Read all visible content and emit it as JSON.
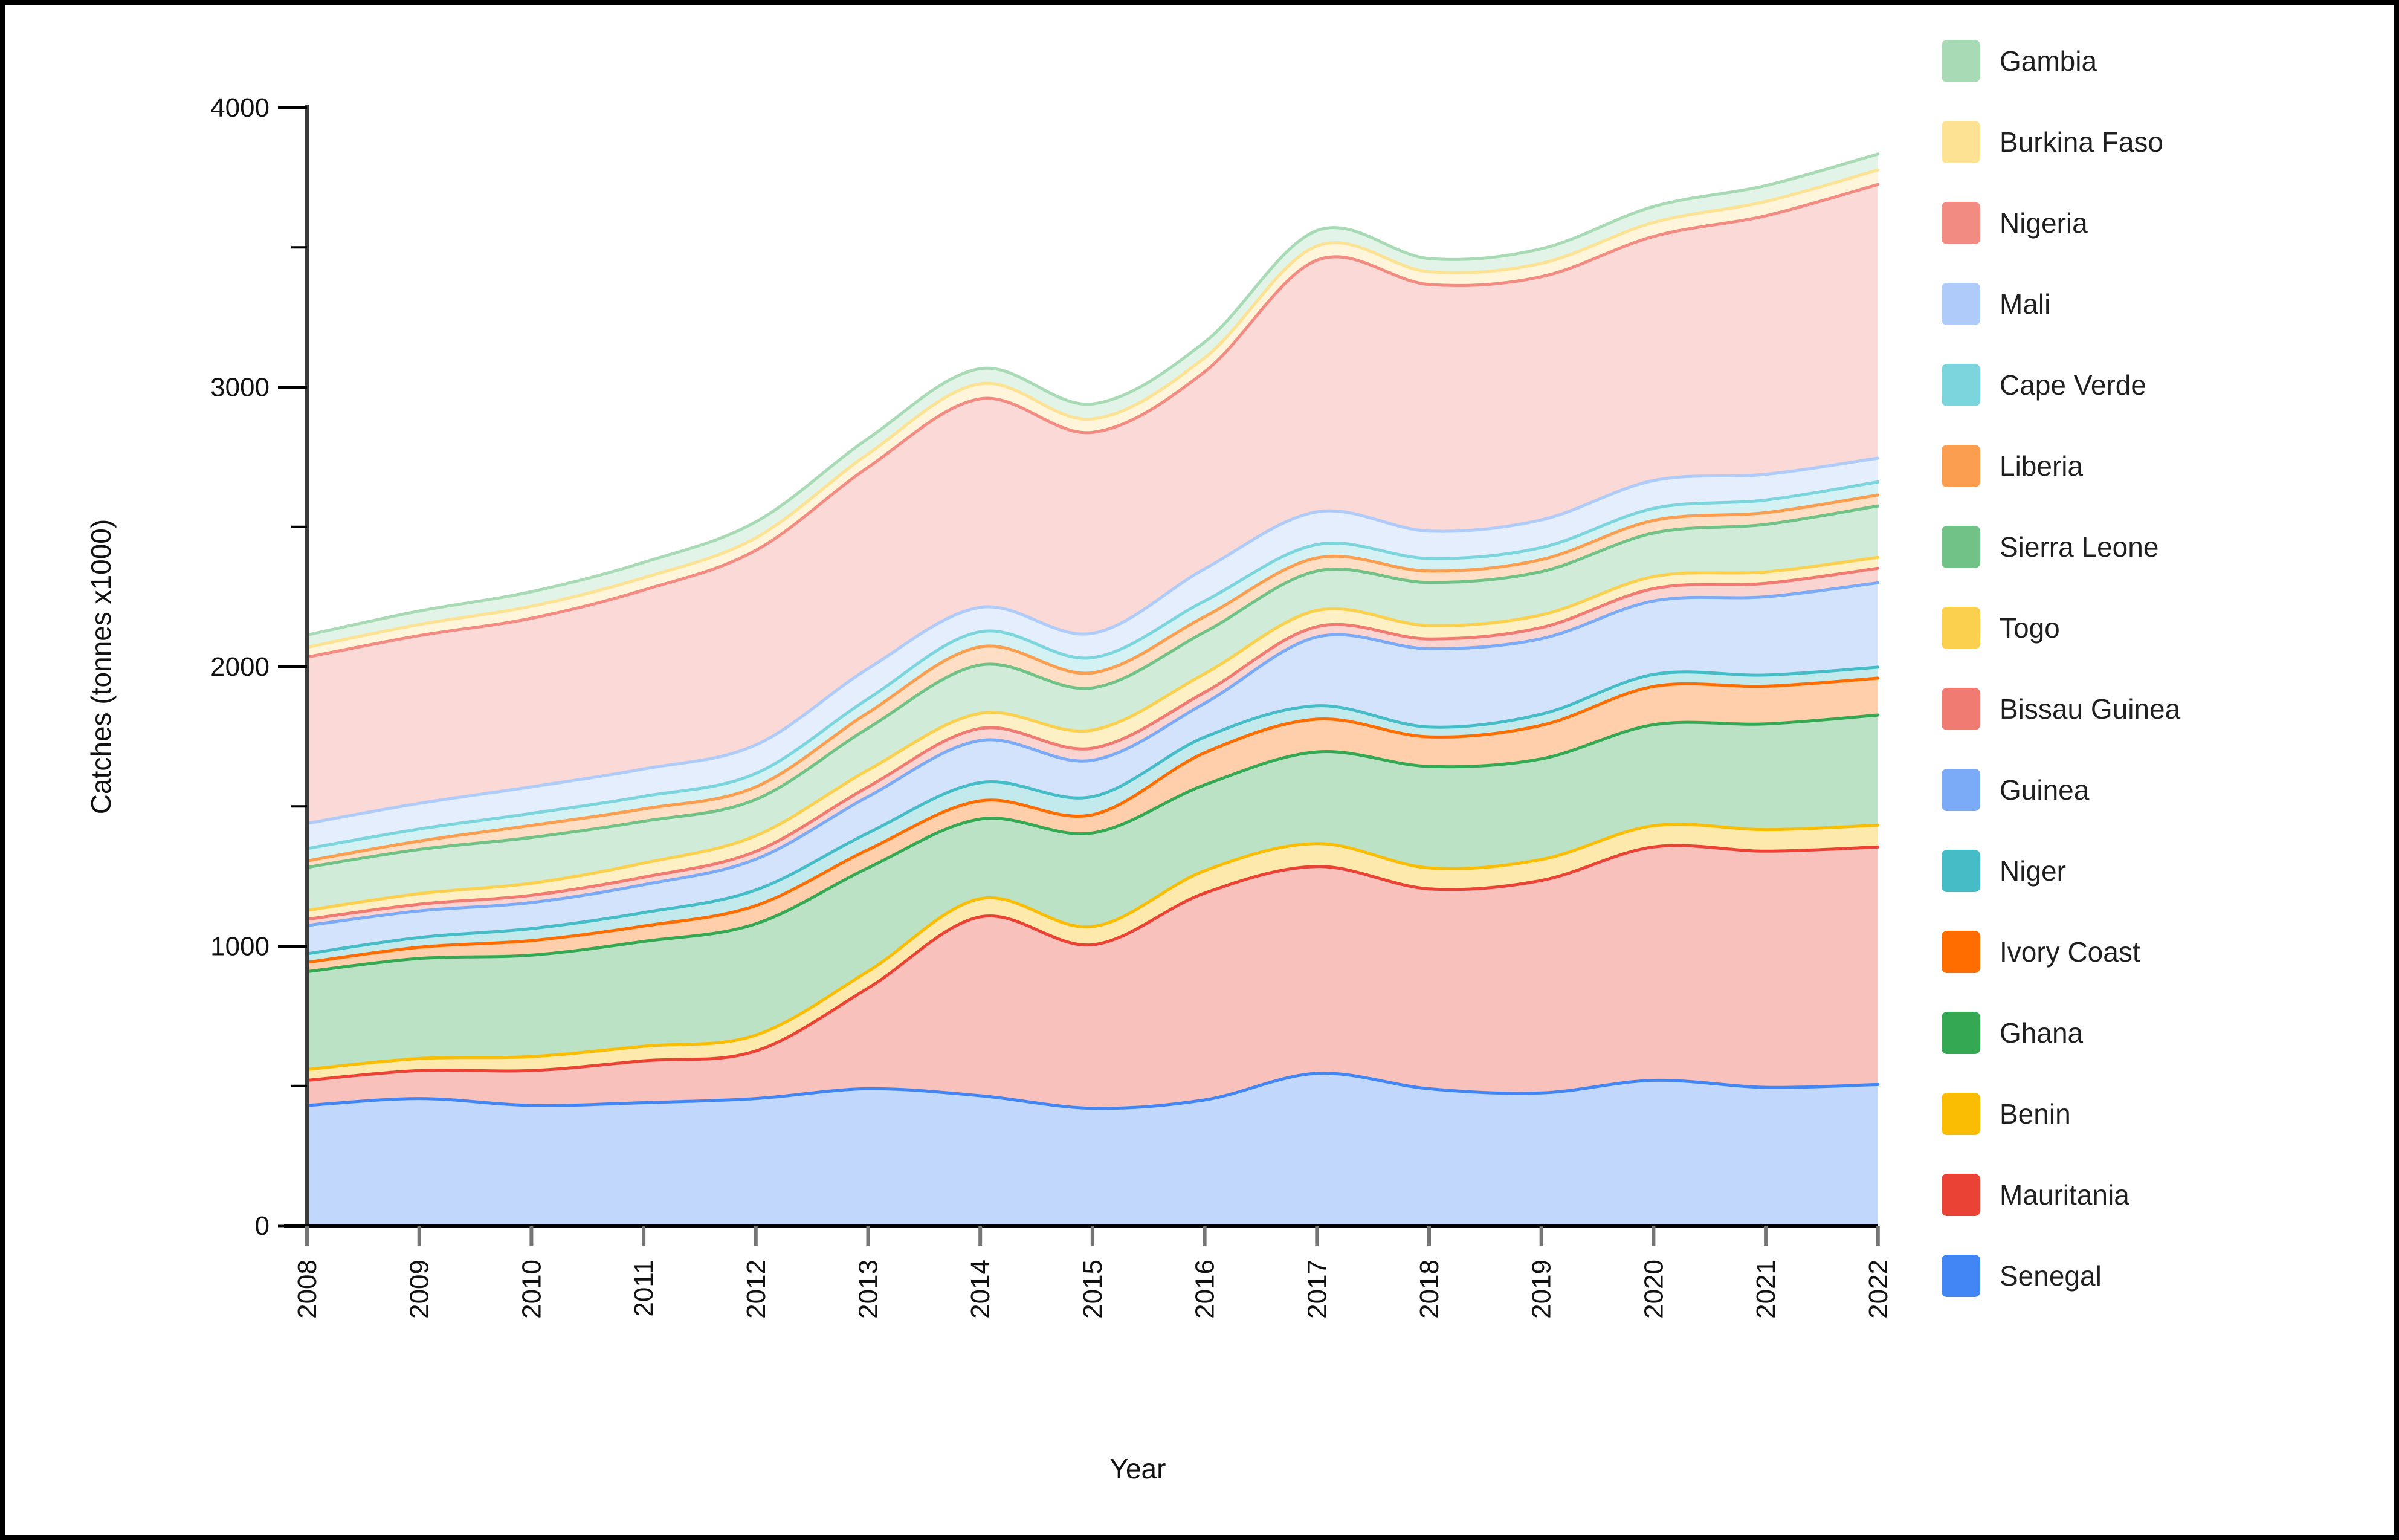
{
  "figure": {
    "kind": "stacked smoothed area chart of fish catches by West African country",
    "x_axis_title": "Year",
    "y_axis_title": "Catches (tonnes x1000)"
  },
  "chart_data": {
    "type": "area",
    "stacked": true,
    "smoothed": true,
    "title": "",
    "xlabel": "Year",
    "ylabel": "Catches (tonnes x1000)",
    "x_categories": [
      "2008",
      "2009",
      "2010",
      "2011",
      "2012",
      "2013",
      "2014",
      "2015",
      "2016",
      "2017",
      "2018",
      "2019",
      "2020",
      "2021",
      "2022"
    ],
    "ylim": [
      0,
      4000
    ],
    "y_ticks_major": [
      0,
      1000,
      2000,
      3000,
      4000
    ],
    "y_ticks_minor": [
      500,
      1500,
      2500,
      3500
    ],
    "grid": false,
    "legend_position": "right",
    "stack_note": "series listed top-of-stack first; bottom of stack is the last item (Senegal)",
    "fill_opacity": 0.33,
    "axis_color": "#000000",
    "x_tick_color": "#757575",
    "series": [
      {
        "name": "Gambia",
        "color": "#a8dab5",
        "values": [
          44,
          48,
          52,
          55,
          57,
          55,
          54,
          54,
          56,
          55,
          47,
          52,
          57,
          57,
          57
        ]
      },
      {
        "name": "Burkina Faso",
        "color": "#fde293",
        "values": [
          35,
          40,
          43,
          44,
          45,
          48,
          54,
          48,
          50,
          51,
          46,
          48,
          50,
          51,
          52
        ]
      },
      {
        "name": "Nigeria",
        "color": "#f28b82",
        "values": [
          595,
          600,
          603,
          640,
          696,
          720,
          746,
          719,
          705,
          900,
          882,
          870,
          873,
          925,
          979
        ]
      },
      {
        "name": "Mali",
        "color": "#aecbfa",
        "values": [
          90,
          92,
          95,
          98,
          102,
          108,
          87,
          87,
          115,
          117,
          98,
          99,
          100,
          92,
          85
        ]
      },
      {
        "name": "Cape Verde",
        "color": "#7cd5dc",
        "values": [
          44,
          43,
          43,
          45,
          48,
          50,
          54,
          54,
          56,
          48,
          45,
          43,
          43,
          45,
          47
        ]
      },
      {
        "name": "Liberia",
        "color": "#fc9e4f",
        "values": [
          23,
          30,
          43,
          44,
          45,
          55,
          65,
          54,
          55,
          47,
          41,
          43,
          45,
          42,
          39
        ]
      },
      {
        "name": "Sierra Leone",
        "color": "#71c287",
        "values": [
          154,
          158,
          164,
          150,
          130,
          150,
          173,
          151,
          149,
          141,
          154,
          155,
          156,
          170,
          184
        ]
      },
      {
        "name": "Togo",
        "color": "#fcd04f",
        "values": [
          32,
          38,
          43,
          50,
          56,
          60,
          54,
          65,
          67,
          58,
          48,
          45,
          43,
          41,
          39
        ]
      },
      {
        "name": "Bissau Guinea",
        "color": "#f07b72",
        "values": [
          22,
          24,
          26,
          27,
          28,
          35,
          43,
          43,
          39,
          37,
          35,
          40,
          44,
          48,
          52
        ]
      },
      {
        "name": "Guinea",
        "color": "#7baaf7",
        "values": [
          101,
          95,
          93,
          100,
          110,
          130,
          151,
          130,
          121,
          246,
          280,
          270,
          263,
          280,
          302
        ]
      },
      {
        "name": "Niger",
        "color": "#46bdc6",
        "values": [
          31,
          35,
          43,
          48,
          56,
          60,
          65,
          65,
          56,
          48,
          35,
          40,
          43,
          40,
          39
        ]
      },
      {
        "name": "Ivory Coast",
        "color": "#ff6d01",
        "values": [
          33,
          40,
          52,
          55,
          65,
          65,
          65,
          65,
          115,
          117,
          106,
          120,
          137,
          135,
          132
        ]
      },
      {
        "name": "Ghana",
        "color": "#34a853",
        "values": [
          350,
          358,
          363,
          375,
          398,
          370,
          285,
          335,
          307,
          328,
          363,
          360,
          361,
          378,
          394
        ]
      },
      {
        "name": "Benin",
        "color": "#fbbc04",
        "values": [
          39,
          43,
          50,
          52,
          57,
          60,
          65,
          65,
          80,
          82,
          75,
          75,
          76,
          77,
          78
        ]
      },
      {
        "name": "Mauritania",
        "color": "#ea4335",
        "values": [
          90,
          100,
          125,
          150,
          170,
          360,
          640,
          585,
          740,
          740,
          715,
          760,
          835,
          845,
          850
        ]
      },
      {
        "name": "Senegal",
        "color": "#4285f4",
        "values": [
          430,
          455,
          430,
          440,
          455,
          490,
          465,
          420,
          450,
          545,
          490,
          475,
          520,
          495,
          505
        ]
      }
    ]
  }
}
